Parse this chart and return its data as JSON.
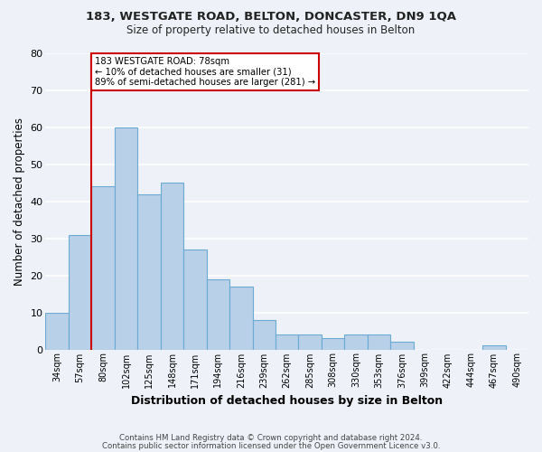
{
  "title1": "183, WESTGATE ROAD, BELTON, DONCASTER, DN9 1QA",
  "title2": "Size of property relative to detached houses in Belton",
  "xlabel": "Distribution of detached houses by size in Belton",
  "ylabel": "Number of detached properties",
  "footer1": "Contains HM Land Registry data © Crown copyright and database right 2024.",
  "footer2": "Contains public sector information licensed under the Open Government Licence v3.0.",
  "bin_labels": [
    "34sqm",
    "57sqm",
    "80sqm",
    "102sqm",
    "125sqm",
    "148sqm",
    "171sqm",
    "194sqm",
    "216sqm",
    "239sqm",
    "262sqm",
    "285sqm",
    "308sqm",
    "330sqm",
    "353sqm",
    "376sqm",
    "399sqm",
    "422sqm",
    "444sqm",
    "467sqm",
    "490sqm"
  ],
  "bar_heights": [
    10,
    31,
    44,
    60,
    42,
    45,
    27,
    19,
    17,
    8,
    4,
    4,
    3,
    4,
    4,
    2,
    0,
    0,
    0,
    1,
    0
  ],
  "bar_color": "#b8d0e8",
  "bar_edge_color": "#6aaad4",
  "vline_x": 2,
  "vline_color": "#cc0000",
  "annotation_title": "183 WESTGATE ROAD: 78sqm",
  "annotation_line1": "← 10% of detached houses are smaller (31)",
  "annotation_line2": "89% of semi-detached houses are larger (281) →",
  "annotation_box_facecolor": "#ffffff",
  "annotation_box_edgecolor": "#cc0000",
  "yticks": [
    0,
    10,
    20,
    30,
    40,
    50,
    60,
    70,
    80
  ],
  "ylim": [
    0,
    80
  ],
  "background_color": "#eef2f8",
  "grid_color": "#ffffff"
}
